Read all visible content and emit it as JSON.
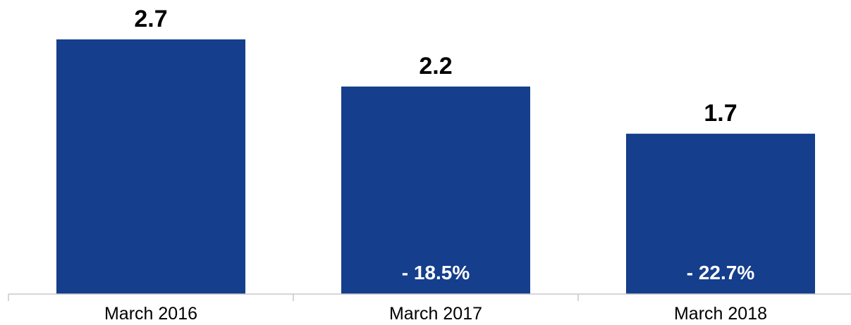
{
  "chart_data": {
    "type": "bar",
    "categories": [
      "March 2016",
      "March 2017",
      "March 2018"
    ],
    "values": [
      2.7,
      2.2,
      1.7
    ],
    "value_labels": [
      "2.7",
      "2.2",
      "1.7"
    ],
    "change_labels": [
      "",
      "- 18.5%",
      "- 22.7%"
    ],
    "title": "",
    "xlabel": "",
    "ylabel": "",
    "ylim": [
      0,
      2.7
    ],
    "grid": false,
    "legend": "none",
    "bar_color": "#153e8c"
  }
}
